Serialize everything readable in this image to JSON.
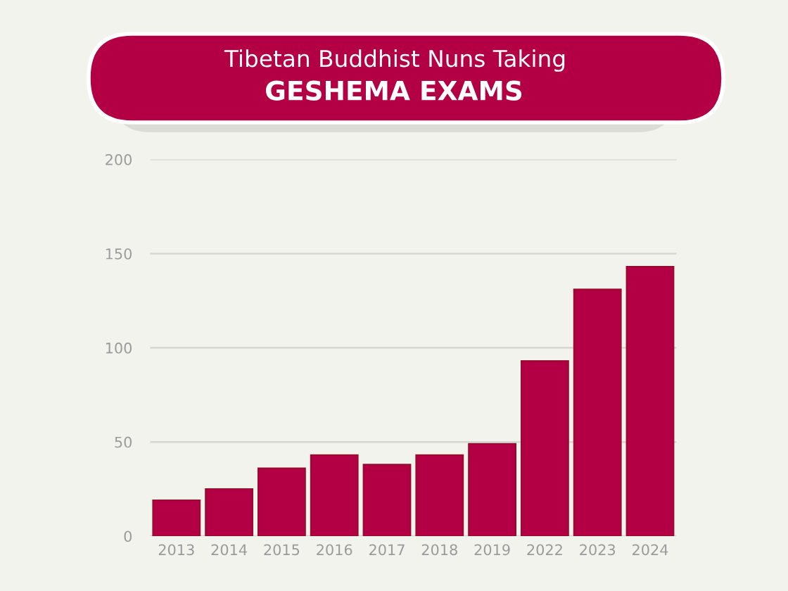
{
  "chart_data": {
    "type": "bar",
    "title": "Tibetan Buddhist Nuns Taking",
    "subtitle": "GESHEMA EXAMS",
    "categories": [
      "2013",
      "2014",
      "2015",
      "2016",
      "2017",
      "2018",
      "2019",
      "2022",
      "2023",
      "2024"
    ],
    "values": [
      19,
      25,
      36,
      43,
      38,
      43,
      49,
      93,
      131,
      143
    ],
    "color": "#b30045",
    "ylim": [
      0,
      200
    ],
    "yticks": [
      0,
      50,
      100,
      150,
      200
    ],
    "grid": "y"
  }
}
